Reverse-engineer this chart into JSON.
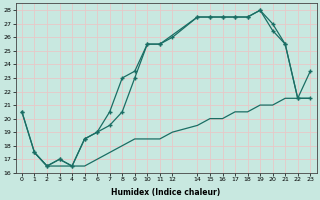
{
  "xlabel": "Humidex (Indice chaleur)",
  "xlim": [
    -0.5,
    23.5
  ],
  "ylim": [
    16,
    28.5
  ],
  "xticks": [
    0,
    1,
    2,
    3,
    4,
    5,
    6,
    7,
    8,
    9,
    10,
    11,
    12,
    14,
    15,
    16,
    17,
    18,
    19,
    20,
    21,
    22,
    23
  ],
  "yticks": [
    16,
    17,
    18,
    19,
    20,
    21,
    22,
    23,
    24,
    25,
    26,
    27,
    28
  ],
  "bg_color": "#c8e8e0",
  "grid_color": "#e8c8c8",
  "line_color": "#1a6e64",
  "line1_x": [
    0,
    1,
    2,
    3,
    4,
    5,
    6,
    7,
    8,
    9,
    10,
    11,
    12,
    14,
    15,
    16,
    17,
    18,
    19,
    20,
    21,
    22,
    23
  ],
  "line1_y": [
    20.5,
    17.5,
    16.5,
    17.0,
    16.5,
    18.5,
    19.0,
    19.5,
    20.5,
    23.0,
    25.5,
    25.5,
    26.0,
    27.5,
    27.5,
    27.5,
    27.5,
    27.5,
    28.0,
    27.0,
    25.5,
    21.5,
    21.5
  ],
  "line2_x": [
    0,
    1,
    2,
    3,
    4,
    5,
    6,
    7,
    8,
    9,
    10,
    11,
    14,
    15,
    16,
    17,
    18,
    19,
    20,
    21,
    22,
    23
  ],
  "line2_y": [
    20.5,
    17.5,
    16.5,
    17.0,
    16.5,
    18.5,
    19.0,
    20.5,
    23.0,
    23.5,
    25.5,
    25.5,
    27.5,
    27.5,
    27.5,
    27.5,
    27.5,
    28.0,
    26.5,
    25.5,
    21.5,
    23.5
  ],
  "line3_x": [
    1,
    2,
    3,
    4,
    5,
    6,
    7,
    8,
    9,
    10,
    11,
    12,
    14,
    15,
    16,
    17,
    18,
    19,
    20,
    21,
    22,
    23
  ],
  "line3_y": [
    17.5,
    16.5,
    16.5,
    16.5,
    16.5,
    17.0,
    17.5,
    18.0,
    18.5,
    18.5,
    18.5,
    19.0,
    19.5,
    20.0,
    20.0,
    20.5,
    20.5,
    21.0,
    21.0,
    21.5,
    21.5,
    21.5
  ]
}
